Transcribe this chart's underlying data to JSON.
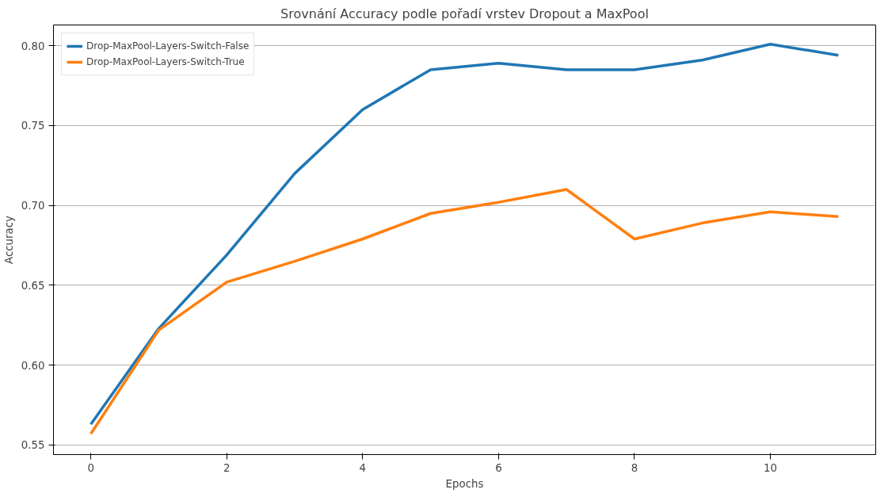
{
  "chart_data": {
    "type": "line",
    "title": "Srovnání Accuracy podle pořadí vrstev Dropout a MaxPool",
    "xlabel": "Epochs",
    "ylabel": "Accuracy",
    "x": [
      0,
      1,
      2,
      3,
      4,
      5,
      6,
      7,
      8,
      9,
      10,
      11
    ],
    "series": [
      {
        "name": "Drop-MaxPool-Layers-Switch-False",
        "color": "#1f77b4",
        "values": [
          0.563,
          0.623,
          0.669,
          0.72,
          0.76,
          0.785,
          0.789,
          0.785,
          0.785,
          0.791,
          0.801,
          0.794
        ]
      },
      {
        "name": "Drop-MaxPool-Layers-Switch-True",
        "color": "#ff7f0e",
        "values": [
          0.557,
          0.622,
          0.652,
          0.665,
          0.679,
          0.695,
          0.702,
          0.71,
          0.679,
          0.689,
          0.696,
          0.693
        ]
      }
    ],
    "xlim": [
      -0.55,
      11.55
    ],
    "ylim": [
      0.544,
      0.813
    ],
    "xticks": [
      0,
      2,
      4,
      6,
      8,
      10
    ],
    "yticks": [
      {
        "value": 0.55,
        "label": "0.55"
      },
      {
        "value": 0.6,
        "label": "0.60"
      },
      {
        "value": 0.65,
        "label": "0.65"
      },
      {
        "value": 0.7,
        "label": "0.70"
      },
      {
        "value": 0.75,
        "label": "0.75"
      },
      {
        "value": 0.8,
        "label": "0.80"
      }
    ],
    "grid": "y",
    "legend": "top left",
    "marker": "none",
    "line_style": "solid"
  }
}
